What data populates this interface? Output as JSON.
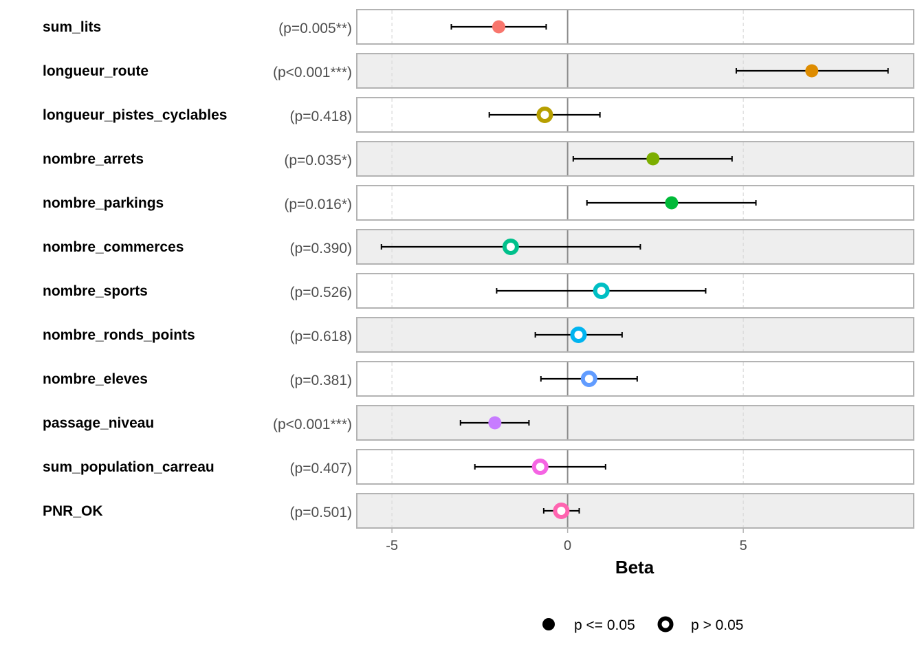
{
  "chart_data": {
    "type": "scatter",
    "subtype": "forest-plot",
    "title": "",
    "xlabel": "Beta",
    "ylabel": "",
    "xlim": [
      -6.0,
      9.85
    ],
    "x_ticks": [
      -5,
      0,
      5
    ],
    "x_tick_labels": [
      "-5",
      "0",
      "5"
    ],
    "reference_line": 0,
    "grid": true,
    "legend_position": "bottom",
    "legend": [
      {
        "label": "p <= 0.05",
        "marker": "filled"
      },
      {
        "label": "p > 0.05",
        "marker": "hollow"
      }
    ],
    "rows": [
      {
        "variable": "sum_lits",
        "p_label": "(p=0.005**)",
        "beta": -1.96,
        "ci_low": -3.31,
        "ci_high": -0.61,
        "significant": true,
        "color": "#F8766D"
      },
      {
        "variable": "longueur_route",
        "p_label": "(p<0.001***)",
        "beta": 6.95,
        "ci_low": 4.8,
        "ci_high": 9.12,
        "significant": true,
        "color": "#DE8C00"
      },
      {
        "variable": "longueur_pistes_cyclables",
        "p_label": "(p=0.418)",
        "beta": -0.65,
        "ci_low": -2.23,
        "ci_high": 0.92,
        "significant": false,
        "color": "#B79F00"
      },
      {
        "variable": "nombre_arrets",
        "p_label": "(p=0.035*)",
        "beta": 2.43,
        "ci_low": 0.16,
        "ci_high": 4.68,
        "significant": true,
        "color": "#7CAE00"
      },
      {
        "variable": "nombre_parkings",
        "p_label": "(p=0.016*)",
        "beta": 2.96,
        "ci_low": 0.55,
        "ci_high": 5.36,
        "significant": true,
        "color": "#00BA38"
      },
      {
        "variable": "nombre_commerces",
        "p_label": "(p=0.390)",
        "beta": -1.62,
        "ci_low": -5.3,
        "ci_high": 2.07,
        "significant": false,
        "color": "#00C08B"
      },
      {
        "variable": "nombre_sports",
        "p_label": "(p=0.526)",
        "beta": 0.96,
        "ci_low": -2.02,
        "ci_high": 3.93,
        "significant": false,
        "color": "#00BFC4"
      },
      {
        "variable": "nombre_ronds_points",
        "p_label": "(p=0.618)",
        "beta": 0.31,
        "ci_low": -0.92,
        "ci_high": 1.55,
        "significant": false,
        "color": "#00B4F0"
      },
      {
        "variable": "nombre_eleves",
        "p_label": "(p=0.381)",
        "beta": 0.61,
        "ci_low": -0.76,
        "ci_high": 1.98,
        "significant": false,
        "color": "#619CFF"
      },
      {
        "variable": "passage_niveau",
        "p_label": "(p<0.001***)",
        "beta": -2.07,
        "ci_low": -3.05,
        "ci_high": -1.1,
        "significant": true,
        "color": "#C77CFF"
      },
      {
        "variable": "sum_population_carreau",
        "p_label": "(p=0.407)",
        "beta": -0.78,
        "ci_low": -2.64,
        "ci_high": 1.08,
        "significant": false,
        "color": "#F564E3"
      },
      {
        "variable": "PNR_OK",
        "p_label": "(p=0.501)",
        "beta": -0.18,
        "ci_low": -0.68,
        "ci_high": 0.33,
        "significant": false,
        "color": "#FF64B0"
      }
    ]
  }
}
